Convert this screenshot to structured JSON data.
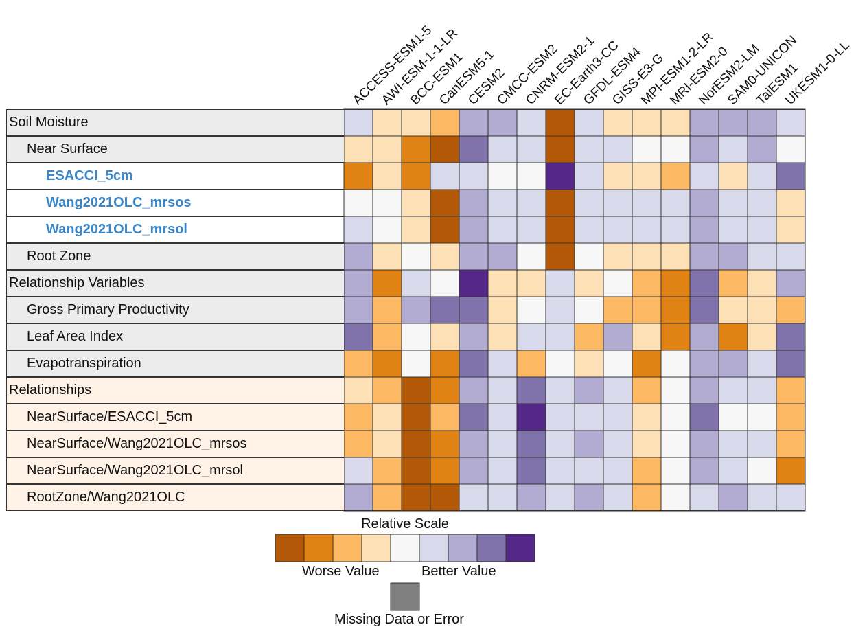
{
  "chart_data": {
    "type": "heatmap",
    "columns": [
      "ACCESS-ESM1-5",
      "AWI-ESM-1-1-LR",
      "BCC-ESM1",
      "CanESM5-1",
      "CESM2",
      "CMCC-ESM2",
      "CNRM-ESM2-1",
      "EC-Earth3-CC",
      "GFDL-ESM4",
      "GISS-E3-G",
      "MPI-ESM1-2-LR",
      "MRI-ESM2-0",
      "NorESM2-LM",
      "SAM0-UNICON",
      "TaiESM1",
      "UKESM1-0-LL"
    ],
    "rows": [
      {
        "label": "Soil Moisture",
        "depth": 0,
        "group": "gray"
      },
      {
        "label": "Near Surface",
        "depth": 1,
        "group": "gray"
      },
      {
        "label": "ESACCI_5cm",
        "depth": 2,
        "group": "white"
      },
      {
        "label": "Wang2021OLC_mrsos",
        "depth": 2,
        "group": "white"
      },
      {
        "label": "Wang2021OLC_mrsol",
        "depth": 2,
        "group": "white"
      },
      {
        "label": "Root Zone",
        "depth": 1,
        "group": "gray"
      },
      {
        "label": "Relationship Variables",
        "depth": 0,
        "group": "gray"
      },
      {
        "label": "Gross Primary Productivity",
        "depth": 1,
        "group": "gray"
      },
      {
        "label": "Leaf Area Index",
        "depth": 1,
        "group": "gray"
      },
      {
        "label": "Evapotranspiration",
        "depth": 1,
        "group": "gray"
      },
      {
        "label": "Relationships",
        "depth": 0,
        "group": "peach"
      },
      {
        "label": "NearSurface/ESACCI_5cm",
        "depth": 1,
        "group": "peach"
      },
      {
        "label": "NearSurface/Wang2021OLC_mrsos",
        "depth": 1,
        "group": "peach"
      },
      {
        "label": "NearSurface/Wang2021OLC_mrsol",
        "depth": 1,
        "group": "peach"
      },
      {
        "label": "RootZone/Wang2021OLC",
        "depth": 1,
        "group": "peach"
      }
    ],
    "values": [
      [
        5,
        3,
        3,
        2,
        6,
        6,
        5,
        0,
        5,
        3,
        3,
        3,
        6,
        6,
        6,
        5
      ],
      [
        3,
        3,
        1,
        0,
        7,
        5,
        5,
        0,
        5,
        5,
        4,
        4,
        6,
        5,
        6,
        4
      ],
      [
        1,
        3,
        1,
        5,
        5,
        4,
        4,
        8,
        5,
        3,
        3,
        2,
        5,
        3,
        5,
        7
      ],
      [
        4,
        4,
        3,
        0,
        6,
        5,
        5,
        0,
        5,
        5,
        5,
        5,
        6,
        5,
        5,
        3
      ],
      [
        5,
        4,
        3,
        0,
        6,
        5,
        5,
        0,
        5,
        5,
        5,
        5,
        6,
        5,
        5,
        3
      ],
      [
        6,
        3,
        4,
        3,
        6,
        6,
        4,
        0,
        4,
        3,
        3,
        3,
        6,
        6,
        5,
        5
      ],
      [
        6,
        1,
        5,
        4,
        8,
        3,
        3,
        5,
        3,
        4,
        2,
        1,
        7,
        2,
        3,
        6
      ],
      [
        6,
        2,
        6,
        7,
        7,
        3,
        4,
        5,
        4,
        2,
        2,
        1,
        7,
        3,
        3,
        2
      ],
      [
        7,
        2,
        4,
        3,
        6,
        3,
        5,
        5,
        2,
        6,
        3,
        1,
        6,
        1,
        3,
        7
      ],
      [
        2,
        1,
        4,
        1,
        7,
        5,
        2,
        4,
        3,
        4,
        1,
        4,
        6,
        6,
        5,
        7
      ],
      [
        3,
        2,
        0,
        1,
        6,
        5,
        7,
        5,
        6,
        5,
        2,
        4,
        6,
        5,
        5,
        2
      ],
      [
        2,
        3,
        0,
        2,
        7,
        5,
        8,
        5,
        5,
        5,
        3,
        4,
        7,
        4,
        4,
        2
      ],
      [
        2,
        3,
        0,
        1,
        6,
        5,
        7,
        5,
        6,
        5,
        3,
        4,
        6,
        5,
        5,
        2
      ],
      [
        5,
        2,
        0,
        1,
        6,
        5,
        7,
        5,
        5,
        5,
        2,
        4,
        6,
        5,
        4,
        1
      ],
      [
        6,
        2,
        0,
        0,
        5,
        5,
        6,
        5,
        6,
        5,
        2,
        4,
        5,
        6,
        5,
        5
      ]
    ],
    "scale_colors": [
      "#b35806",
      "#e08214",
      "#fdb863",
      "#fee0b6",
      "#f7f7f7",
      "#d8daeb",
      "#b2abd2",
      "#8073ac",
      "#542788"
    ],
    "missing_color": "#808080",
    "legend": {
      "title": "Relative Scale",
      "low_label": "Worse Value",
      "high_label": "Better Value",
      "missing_label": "Missing Data or Error"
    }
  }
}
